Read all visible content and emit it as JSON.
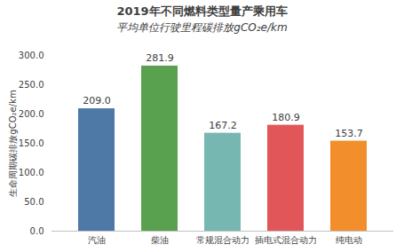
{
  "chart_data": {
    "type": "bar",
    "title": "2019年不同燃料类型量产乘用车",
    "subtitle": "平均单位行驶里程碳排放gCO₂e/km",
    "y_label": "生命周期碳排放gCO₂e/km",
    "categories": [
      "汽油",
      "柴油",
      "常规混合动力",
      "插电式混合动力",
      "纯电动"
    ],
    "values": [
      209.0,
      281.9,
      167.2,
      180.9,
      153.7
    ],
    "value_labels": [
      "209.0",
      "281.9",
      "167.2",
      "180.9",
      "153.7"
    ],
    "colors": [
      "#4e79a7",
      "#59a14f",
      "#76b7b2",
      "#e15759",
      "#f28e2b"
    ],
    "ylim": [
      0,
      300
    ],
    "yticks": [
      {
        "value": 0,
        "label": "0.0"
      },
      {
        "value": 50,
        "label": "50.0"
      },
      {
        "value": 100,
        "label": "100.0"
      },
      {
        "value": 150,
        "label": "150.0"
      },
      {
        "value": 200,
        "label": "200.0"
      },
      {
        "value": 250,
        "label": "250.0"
      },
      {
        "value": 300,
        "label": "300.0"
      }
    ],
    "grid": false,
    "data_labels": true
  }
}
